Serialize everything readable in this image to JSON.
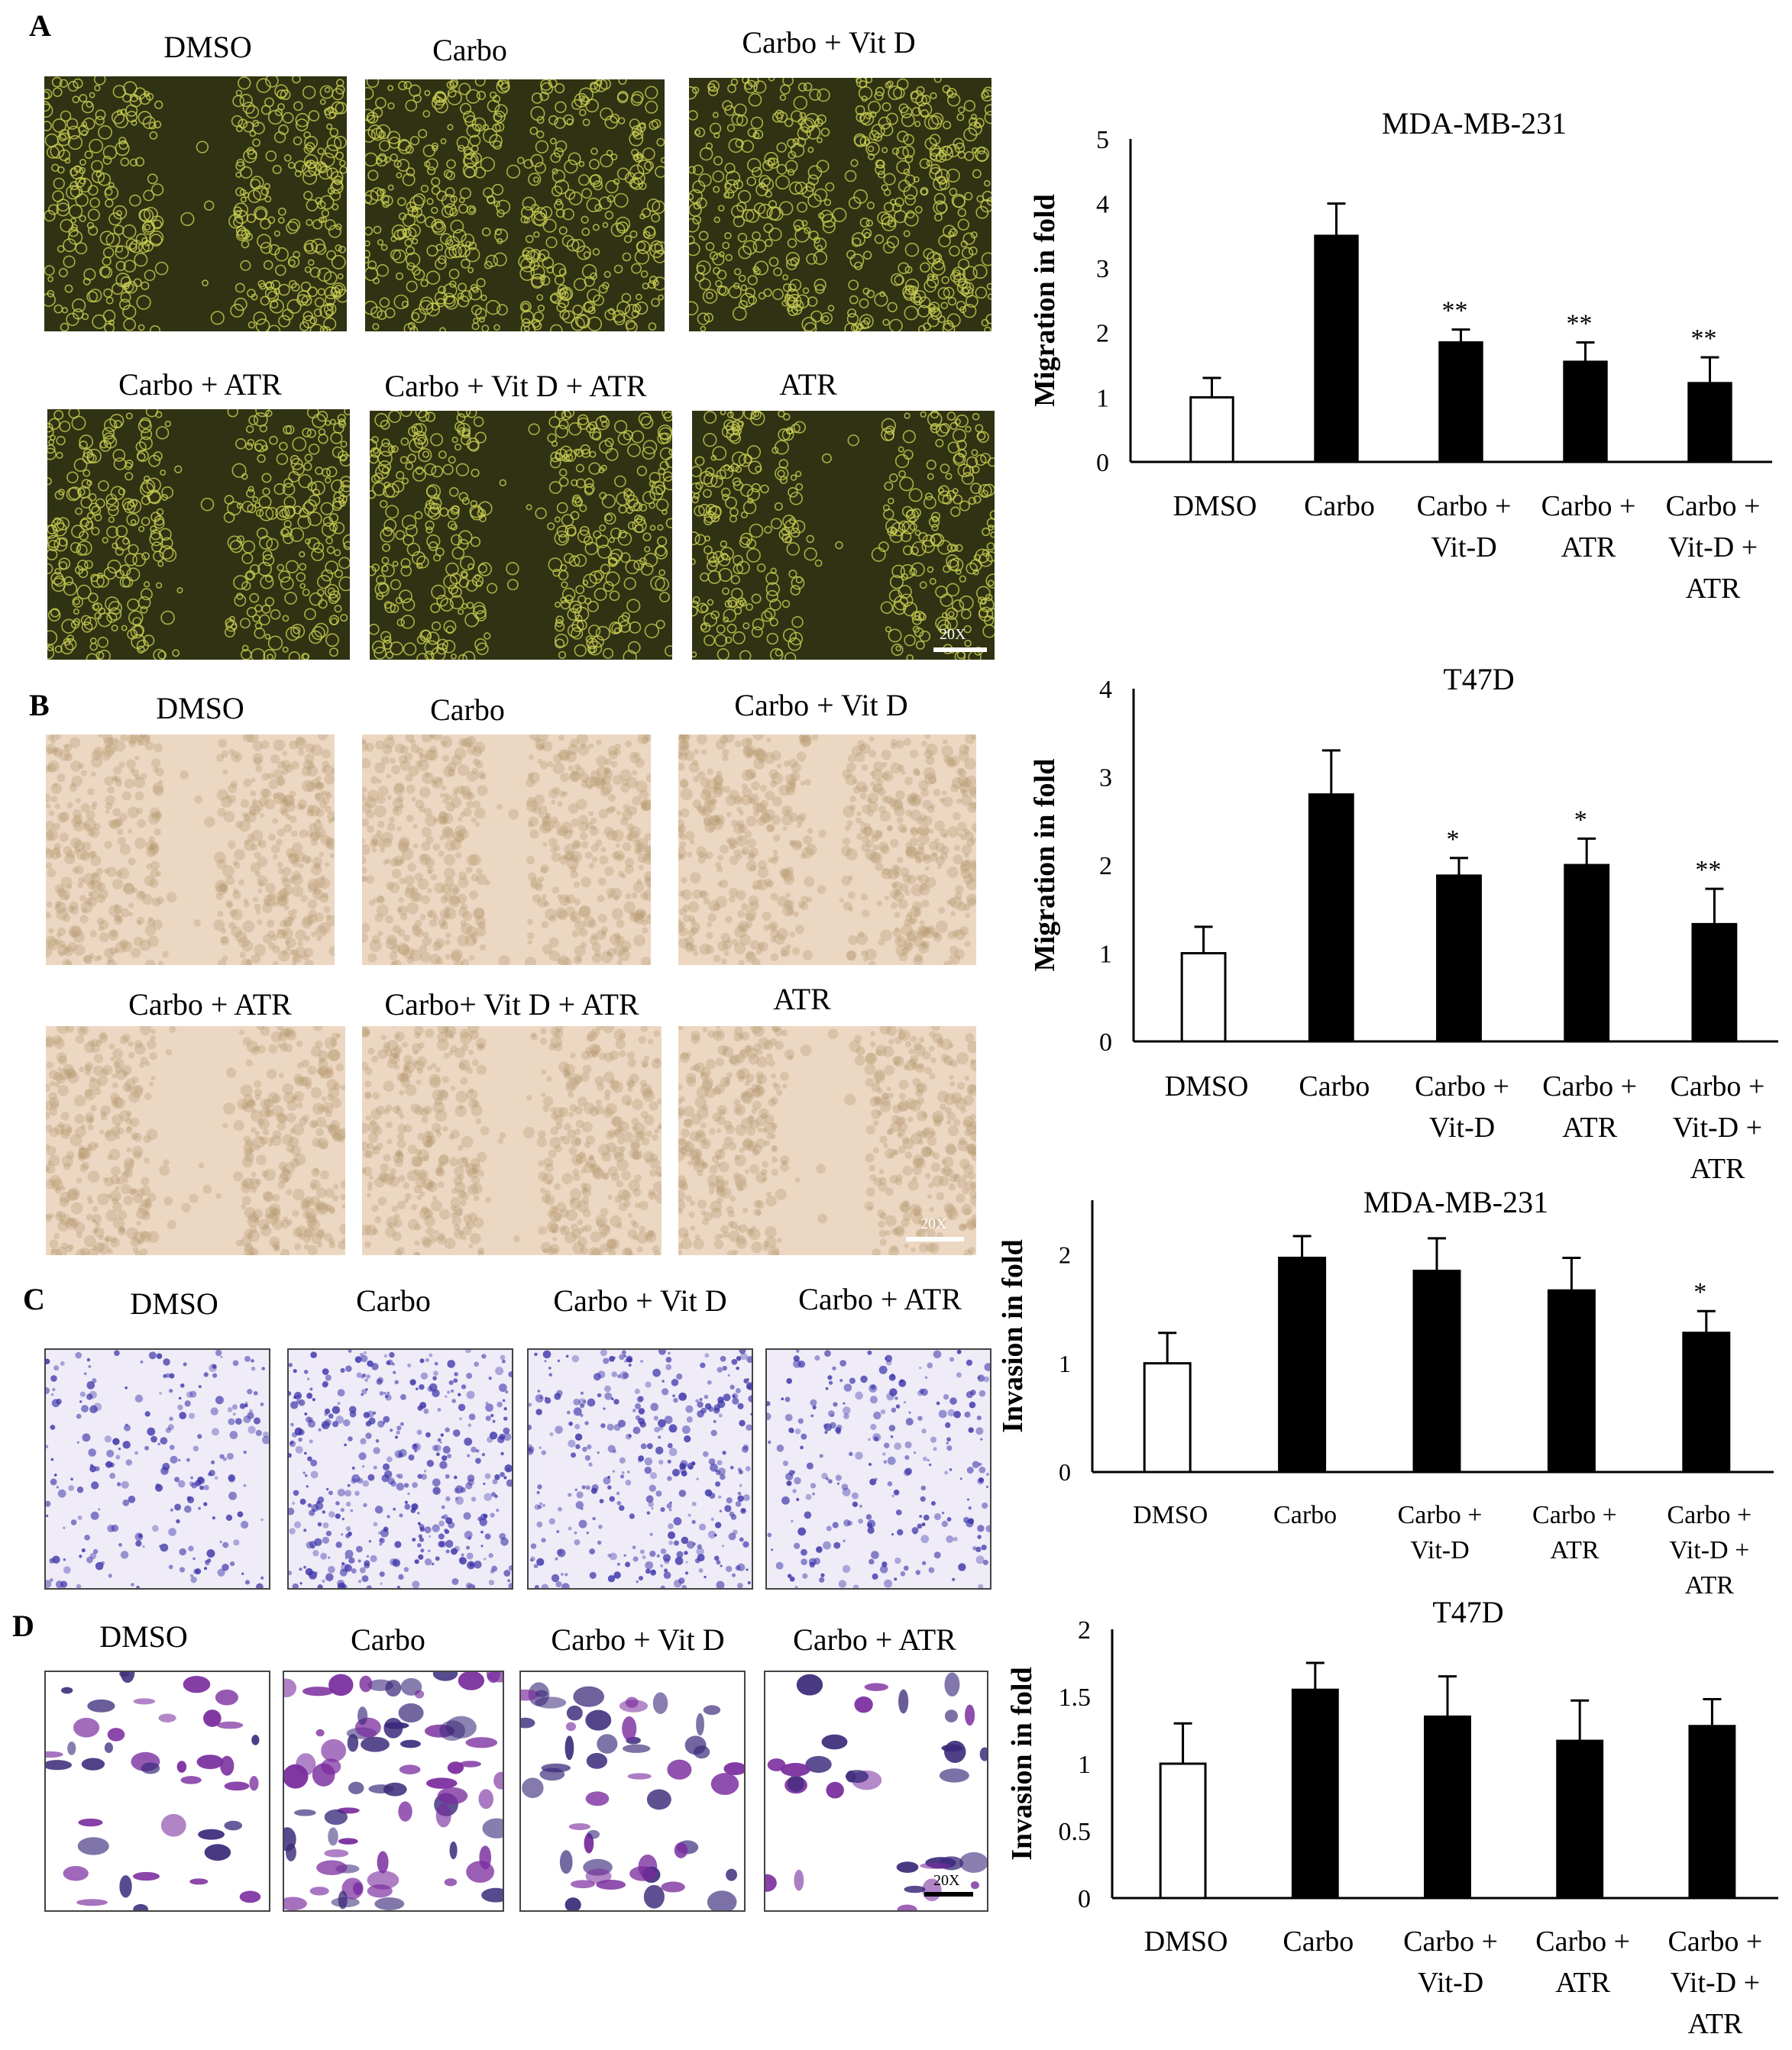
{
  "panels": {
    "A": {
      "letter": "A",
      "images": [
        {
          "label": "DMSO",
          "gap": 0.25
        },
        {
          "label": "Carbo",
          "gap": 0.06
        },
        {
          "label": "Carbo + Vit D",
          "gap": 0.06
        },
        {
          "label": "Carbo + ATR",
          "gap": 0.2
        },
        {
          "label": "Carbo + Vit D + ATR",
          "gap": 0.22
        },
        {
          "label": "ATR",
          "gap": 0.28
        }
      ],
      "scale_bar": "20X",
      "colors": {
        "bg": "#2f3313",
        "cell": "#c9cd52"
      }
    },
    "B": {
      "letter": "B",
      "images": [
        {
          "label": "DMSO",
          "gap": 0.2
        },
        {
          "label": "Carbo",
          "gap": 0.16
        },
        {
          "label": "Carbo + Vit D",
          "gap": 0.12
        },
        {
          "label": "Carbo + ATR",
          "gap": 0.28
        },
        {
          "label": "Carbo+ Vit D + ATR",
          "gap": 0.2
        },
        {
          "label": "ATR",
          "gap": 0.28
        }
      ],
      "scale_bar": "20X",
      "colors": {
        "bg": "#ecd7c3",
        "cell": "#b79a72"
      }
    },
    "C": {
      "letter": "C",
      "images": [
        {
          "label": "DMSO",
          "density": 0.55
        },
        {
          "label": "Carbo",
          "density": 1.0
        },
        {
          "label": "Carbo + Vit D",
          "density": 0.85
        },
        {
          "label": "Carbo +  ATR",
          "density": 0.6
        }
      ],
      "colors": {
        "bg": "#efecf8",
        "cell": "#3b33a8"
      }
    },
    "D": {
      "letter": "D",
      "images": [
        {
          "label": "DMSO",
          "density": 0.55
        },
        {
          "label": "Carbo",
          "density": 1.0
        },
        {
          "label": "Carbo + Vit D",
          "density": 0.7
        },
        {
          "label": "Carbo +  ATR",
          "density": 0.45
        }
      ],
      "scale_bar": "20X",
      "colors": {
        "bg": "#ffffff",
        "cell": "#7a2c9e"
      }
    }
  },
  "chart_data": [
    {
      "type": "bar",
      "title": "MDA-MB-231",
      "ylabel": "Migration in fold",
      "categories": [
        [
          "DMSO"
        ],
        [
          "Carbo"
        ],
        [
          "Carbo +",
          "Vit-D"
        ],
        [
          "Carbo +",
          "ATR"
        ],
        [
          "Carbo +",
          "Vit-D +",
          "ATR"
        ]
      ],
      "values": [
        1.0,
        3.5,
        1.85,
        1.55,
        1.22
      ],
      "errors": [
        0.3,
        0.5,
        0.2,
        0.3,
        0.4
      ],
      "significance": [
        "",
        "",
        "**",
        "**",
        "**"
      ],
      "ylim": [
        0,
        5
      ],
      "yticks": [
        "0",
        "1",
        "2",
        "3",
        "4",
        "5"
      ],
      "bar_colors": [
        "#ffffff",
        "#000000",
        "#000000",
        "#000000",
        "#000000"
      ]
    },
    {
      "type": "bar",
      "title": "T47D",
      "ylabel": "Migration in fold",
      "categories": [
        [
          "DMSO"
        ],
        [
          "Carbo"
        ],
        [
          "Carbo +",
          "Vit-D"
        ],
        [
          "Carbo +",
          "ATR"
        ],
        [
          "Carbo +",
          "Vit-D +",
          "ATR"
        ]
      ],
      "values": [
        1.0,
        2.8,
        1.88,
        2.0,
        1.33
      ],
      "errors": [
        0.3,
        0.5,
        0.2,
        0.3,
        0.4
      ],
      "significance": [
        "",
        "",
        "*",
        "*",
        "**"
      ],
      "ylim": [
        0,
        4
      ],
      "yticks": [
        "0",
        "1",
        "2",
        "3",
        "4"
      ],
      "bar_colors": [
        "#ffffff",
        "#000000",
        "#000000",
        "#000000",
        "#000000"
      ]
    },
    {
      "type": "bar",
      "title": "MDA-MB-231",
      "ylabel": "Invasion in fold",
      "categories": [
        [
          "DMSO"
        ],
        [
          "Carbo"
        ],
        [
          "Carbo +",
          "Vit-D"
        ],
        [
          "Carbo +",
          "ATR"
        ],
        [
          "Carbo +",
          "Vit-D +",
          "ATR"
        ]
      ],
      "values": [
        1.0,
        1.97,
        1.85,
        1.67,
        1.28
      ],
      "errors": [
        0.28,
        0.2,
        0.3,
        0.3,
        0.2
      ],
      "significance": [
        "",
        "",
        "",
        "",
        "*"
      ],
      "ylim": [
        0,
        2.5
      ],
      "yticks": [
        "0",
        "1",
        "2"
      ],
      "ytick_values": [
        0,
        1,
        2
      ],
      "bar_colors": [
        "#ffffff",
        "#000000",
        "#000000",
        "#000000",
        "#000000"
      ]
    },
    {
      "type": "bar",
      "title": "T47D",
      "ylabel": "Invasion in fold",
      "categories": [
        [
          "DMSO"
        ],
        [
          "Carbo"
        ],
        [
          "Carbo +",
          "Vit-D"
        ],
        [
          "Carbo +",
          "ATR"
        ],
        [
          "Carbo +",
          "Vit-D +",
          "ATR"
        ]
      ],
      "values": [
        1.0,
        1.55,
        1.35,
        1.17,
        1.28
      ],
      "errors": [
        0.3,
        0.2,
        0.3,
        0.3,
        0.2
      ],
      "significance": [
        "",
        "",
        "",
        "",
        ""
      ],
      "ylim": [
        0,
        2
      ],
      "yticks": [
        "0",
        "0.5",
        "1",
        "1.5",
        "2"
      ],
      "bar_colors": [
        "#ffffff",
        "#000000",
        "#000000",
        "#000000",
        "#000000"
      ]
    }
  ]
}
